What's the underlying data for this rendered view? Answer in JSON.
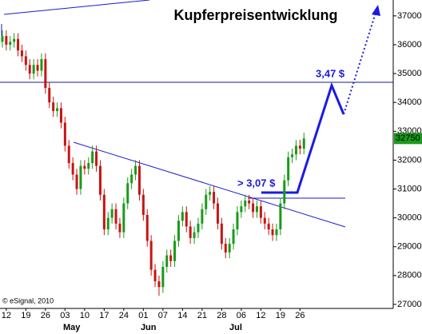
{
  "chart_data": {
    "type": "candlestick",
    "title": "Kupferpreisentwicklung",
    "annotations": [
      "3,47 $",
      "> 3,07 $"
    ],
    "source": "© eSignal, 2010",
    "up_color": "#1a9a1a",
    "down_color": "#c81414",
    "open": [
      36100,
      36300,
      36000,
      36100,
      36200,
      35800,
      35600,
      35300,
      35000,
      35300,
      35100,
      35500,
      34500,
      34000,
      33700,
      33800,
      33300,
      32500,
      31900,
      31500,
      31000,
      31800,
      31700,
      31900,
      32300,
      31800,
      30800,
      29600,
      30000,
      30300,
      29800,
      29500,
      30500,
      31200,
      31500,
      31800,
      30800,
      30100,
      29200,
      28200,
      27800,
      27600,
      28300,
      28700,
      28500,
      29200,
      29900,
      30200,
      29700,
      29300,
      29500,
      29800,
      30300,
      30800,
      30900,
      30500,
      29800,
      29100,
      28800,
      29100,
      29600,
      30200,
      30400,
      30600,
      30500,
      30200,
      30400,
      30000,
      29800,
      29600,
      29400,
      29600,
      30500,
      31300,
      32100,
      32200,
      32500,
      32400
    ],
    "high": [
      36500,
      36500,
      36300,
      36400,
      36400,
      36000,
      35800,
      35500,
      35500,
      35500,
      35700,
      35700,
      34700,
      34200,
      34000,
      34000,
      33500,
      32700,
      32100,
      31700,
      32000,
      32000,
      32100,
      32500,
      32500,
      32000,
      31000,
      30200,
      30500,
      30500,
      30000,
      30700,
      31400,
      31700,
      32000,
      32000,
      31000,
      30300,
      29400,
      28400,
      28000,
      28500,
      28900,
      28900,
      29400,
      30100,
      30400,
      30400,
      29900,
      29700,
      30000,
      30500,
      31000,
      31100,
      31100,
      30700,
      30000,
      29300,
      29300,
      29800,
      30400,
      30600,
      30800,
      30800,
      30700,
      30600,
      30600,
      30200,
      30000,
      29800,
      29800,
      30700,
      31500,
      32300,
      32400,
      32700,
      32700,
      32950
    ],
    "low": [
      35900,
      35800,
      35800,
      35900,
      35600,
      35400,
      35100,
      34800,
      34800,
      34900,
      34900,
      34300,
      33800,
      33500,
      33500,
      33100,
      32300,
      31700,
      31300,
      30800,
      30800,
      31500,
      31500,
      31700,
      31600,
      30600,
      29400,
      29400,
      29800,
      29600,
      29300,
      29300,
      30300,
      31000,
      31300,
      30600,
      29900,
      29000,
      28000,
      27600,
      27300,
      27400,
      28100,
      28300,
      28300,
      29000,
      29700,
      29500,
      29100,
      29100,
      29300,
      29600,
      30100,
      30600,
      30300,
      29600,
      28900,
      28600,
      28600,
      28900,
      29400,
      30000,
      30200,
      30300,
      30000,
      30000,
      29800,
      29600,
      29400,
      29200,
      29200,
      29400,
      30300,
      31100,
      31900,
      32000,
      32200,
      32200
    ],
    "close": [
      36300,
      36000,
      36100,
      36200,
      35800,
      35600,
      35300,
      35000,
      35300,
      35100,
      35500,
      34500,
      34000,
      33700,
      33800,
      33300,
      32500,
      31900,
      31500,
      31000,
      31800,
      31700,
      31900,
      32300,
      31800,
      30800,
      29600,
      30000,
      30300,
      29800,
      29500,
      30500,
      31200,
      31500,
      31800,
      30800,
      30100,
      29200,
      28200,
      27800,
      27600,
      28300,
      28700,
      28500,
      29200,
      29900,
      30200,
      29700,
      29300,
      29500,
      29800,
      30300,
      30800,
      30900,
      30500,
      29800,
      29100,
      28800,
      29100,
      29600,
      30200,
      30400,
      30600,
      30500,
      30200,
      30400,
      30000,
      29800,
      29600,
      29400,
      29600,
      30500,
      31300,
      32100,
      32200,
      32500,
      32400,
      32750
    ],
    "xlim": [
      -0.6,
      99.8
    ],
    "xticks": [
      {
        "value": 1,
        "label": "12"
      },
      {
        "value": 6,
        "label": "19"
      },
      {
        "value": 11,
        "label": "26"
      },
      {
        "value": 16,
        "label": "03"
      },
      {
        "value": 21,
        "label": "10"
      },
      {
        "value": 26,
        "label": "17"
      },
      {
        "value": 31,
        "label": "24"
      },
      {
        "value": 36,
        "label": "01"
      },
      {
        "value": 41,
        "label": "07"
      },
      {
        "value": 46,
        "label": "14"
      },
      {
        "value": 51,
        "label": "21"
      },
      {
        "value": 56,
        "label": "28"
      },
      {
        "value": 61,
        "label": "06"
      },
      {
        "value": 66,
        "label": "12"
      },
      {
        "value": 71,
        "label": "19"
      },
      {
        "value": 76,
        "label": "26"
      }
    ],
    "month_labels": [
      {
        "value": 17.7,
        "label": "May"
      },
      {
        "value": 37.3,
        "label": "Jun"
      },
      {
        "value": 59.6,
        "label": "Jul"
      }
    ],
    "ylim": [
      26860,
      37550
    ],
    "yticks": [
      27000,
      28000,
      29000,
      30000,
      31000,
      32000,
      33000,
      34000,
      35000,
      36000,
      37000
    ]
  }
}
